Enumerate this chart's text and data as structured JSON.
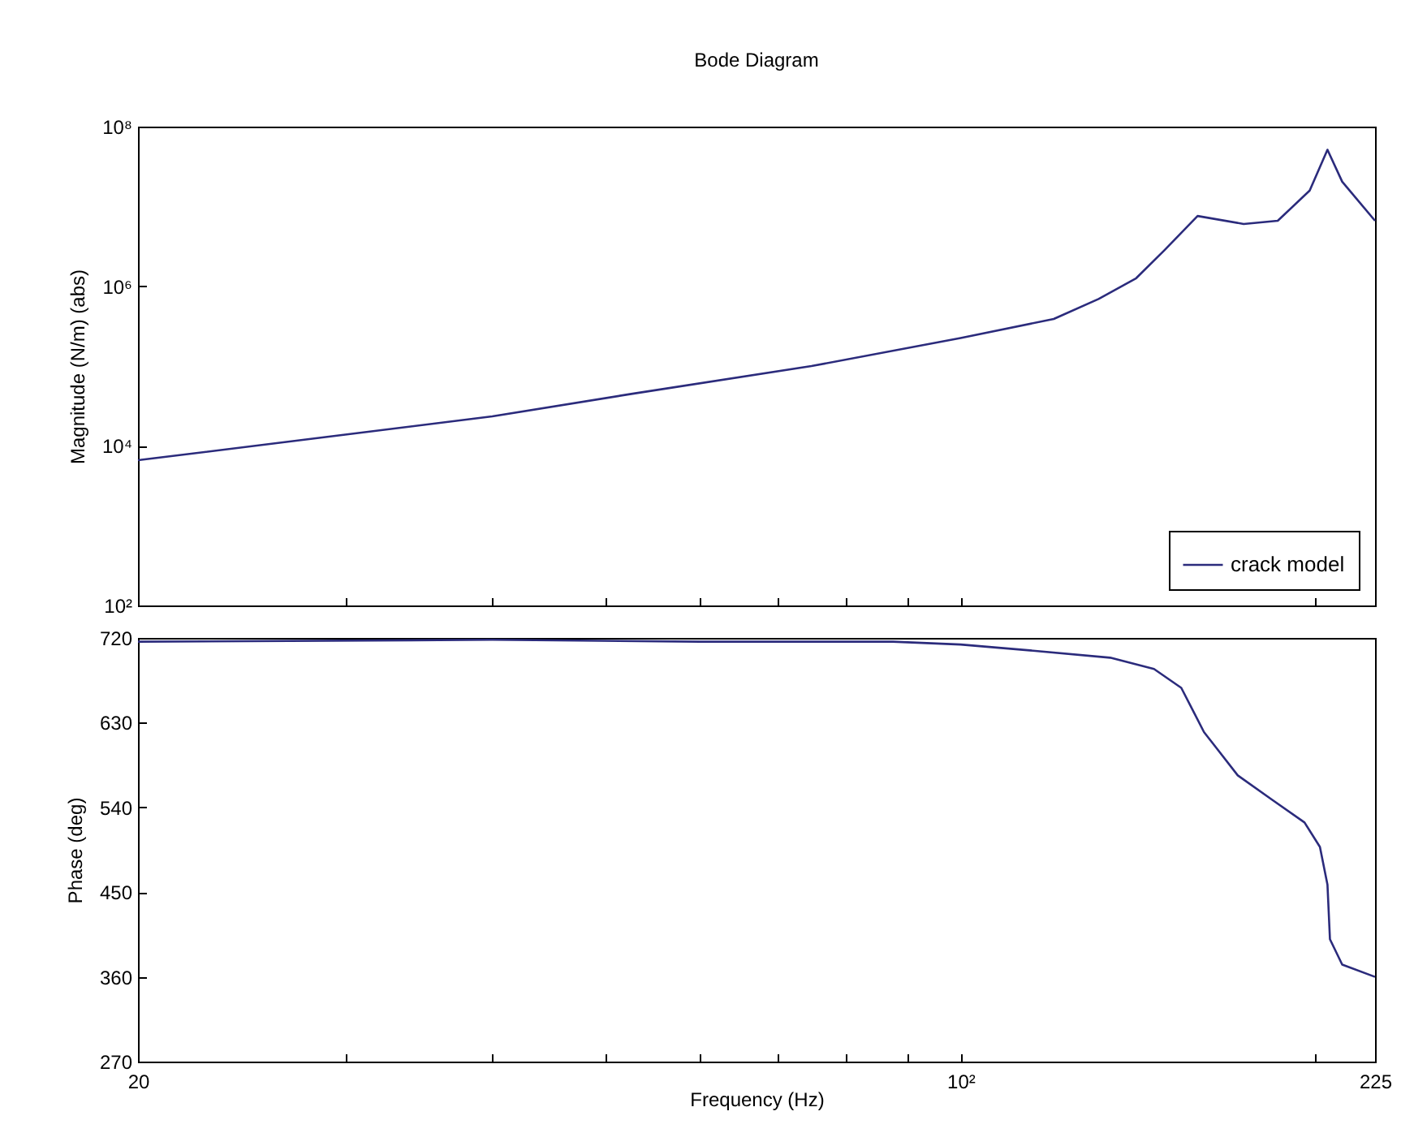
{
  "chart_data": [
    {
      "type": "line",
      "title": "Bode Diagram",
      "ylabel": "Magnitude (N/m) (abs)",
      "log": "xy",
      "grid": false,
      "legend": "bottom right",
      "tick_labels": "y",
      "xlim": [
        20,
        225
      ],
      "xticks": [
        {
          "value": 20,
          "label": null
        },
        {
          "value": 30,
          "label": null
        },
        {
          "value": 40,
          "label": null
        },
        {
          "value": 50,
          "label": null
        },
        {
          "value": 60,
          "label": null
        },
        {
          "value": 70,
          "label": null
        },
        {
          "value": 80,
          "label": null
        },
        {
          "value": 90,
          "label": null
        },
        {
          "value": 100,
          "label": null
        },
        {
          "value": 200,
          "label": null
        },
        {
          "value": 225,
          "label": null
        }
      ],
      "ylim": [
        100,
        100000000
      ],
      "yticks": [
        {
          "value": 100,
          "label": "10²"
        },
        {
          "value": 10000,
          "label": "10⁴"
        },
        {
          "value": 1000000,
          "label": "10⁶"
        },
        {
          "value": 100000000,
          "label": "10⁸"
        }
      ],
      "series": [
        {
          "name": "crack model",
          "color": "#2b2b7c",
          "x": [
            20,
            30,
            40,
            52.5,
            74.7,
            100,
            120,
            131,
            141,
            149,
            159,
            174,
            186,
            198,
            205,
            211,
            225
          ],
          "values": [
            6600,
            13800,
            23400,
            44700,
            100000,
            224000,
            389000,
            692000,
            1260000,
            2820000,
            7590000,
            6030000,
            6610000,
            15800000,
            51300000,
            20400000,
            6610000
          ]
        }
      ]
    },
    {
      "type": "line",
      "xlabel": "Frequency  (Hz)",
      "ylabel": "Phase (deg)",
      "log": "x",
      "grid": false,
      "xlim": [
        20,
        225
      ],
      "xticks": [
        20,
        {
          "value": 30,
          "label": null
        },
        {
          "value": 40,
          "label": null
        },
        {
          "value": 50,
          "label": null
        },
        {
          "value": 60,
          "label": null
        },
        {
          "value": 70,
          "label": null
        },
        {
          "value": 80,
          "label": null
        },
        {
          "value": 90,
          "label": null
        },
        {
          "value": 100,
          "label": "10²"
        },
        {
          "value": 200,
          "label": null
        },
        225
      ],
      "ylim": [
        270,
        720
      ],
      "yticks": [
        270,
        360,
        450,
        540,
        630,
        720
      ],
      "series": [
        {
          "color": "#2b2b7c",
          "x": [
            20,
            40,
            60,
            87.6,
            100,
            114,
            134,
            146,
            154,
            158,
            161,
            165,
            172,
            184,
            196,
            202,
            205,
            206,
            211,
            225
          ],
          "values": [
            716,
            718,
            716,
            716,
            713,
            707,
            699,
            687,
            667,
            640,
            620,
            603,
            574,
            548,
            524,
            498,
            458,
            400,
            373,
            360
          ]
        }
      ]
    }
  ]
}
